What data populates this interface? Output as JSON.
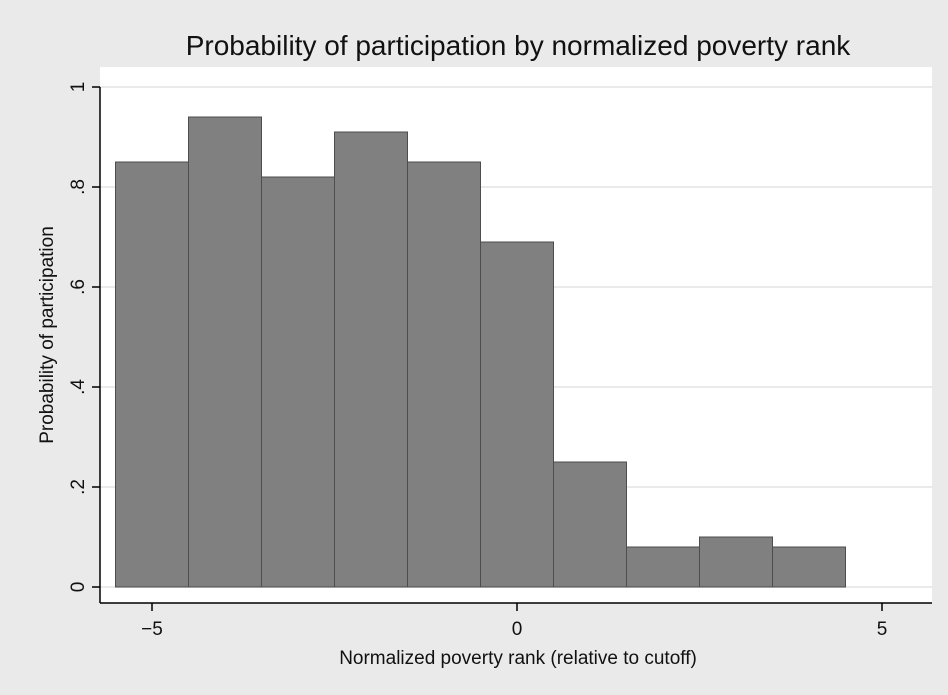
{
  "chart_data": {
    "type": "bar",
    "title": "Probability of participation by normalized poverty rank",
    "xlabel": "Normalized poverty rank (relative to cutoff)",
    "ylabel": "Probability of participation",
    "xlim": [
      -5.5,
      5.5
    ],
    "ylim": [
      0,
      1
    ],
    "x_ticks": [
      {
        "value": -5,
        "label": "−5"
      },
      {
        "value": 0,
        "label": "0"
      },
      {
        "value": 5,
        "label": "5"
      }
    ],
    "y_ticks": [
      {
        "value": 0,
        "label": "0"
      },
      {
        "value": 0.2,
        "label": ".2"
      },
      {
        "value": 0.4,
        "label": ".4"
      },
      {
        "value": 0.6,
        "label": ".6"
      },
      {
        "value": 0.8,
        "label": ".8"
      },
      {
        "value": 1,
        "label": "1"
      }
    ],
    "grid": true,
    "bar_width": 1,
    "x": [
      -5,
      -4,
      -3,
      -2,
      -1,
      0,
      1,
      2,
      3,
      4
    ],
    "values": [
      0.85,
      0.94,
      0.82,
      0.91,
      0.85,
      0.69,
      0.25,
      0.08,
      0.1,
      0.08
    ],
    "colors": {
      "background": "#eaeaea",
      "plot_background": "#ffffff",
      "bar_fill": "#808080",
      "bar_stroke": "#4d4d4d",
      "grid": "#e4e4e4",
      "axis": "#000000"
    }
  }
}
